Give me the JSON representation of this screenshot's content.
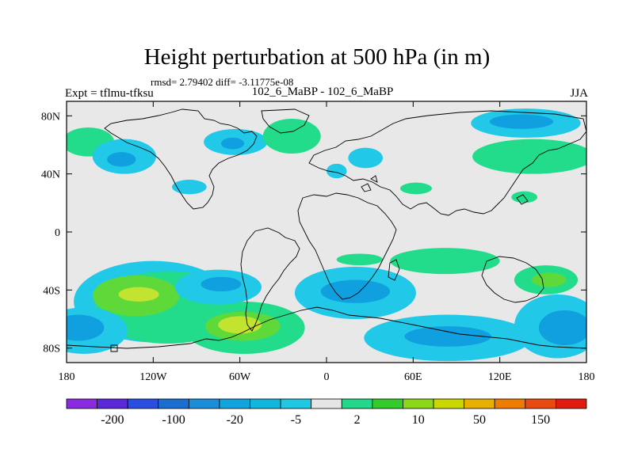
{
  "header": {
    "title": "Height perturbation at 500 hPa (in m)",
    "stats": "rmsd= 2.79402 diff= -3.11775e-08",
    "left_label": "Expt = tflmu-tfksu",
    "center_label": "102_6_MaBP - 102_6_MaBP",
    "right_label": "JJA"
  },
  "map": {
    "lon_range": [
      -180,
      180
    ],
    "lat_range": [
      -90,
      90
    ],
    "x_ticks": [
      {
        "lon": -180,
        "label": "180"
      },
      {
        "lon": -120,
        "label": "120W"
      },
      {
        "lon": -60,
        "label": "60W"
      },
      {
        "lon": 0,
        "label": "0"
      },
      {
        "lon": 60,
        "label": "60E"
      },
      {
        "lon": 120,
        "label": "120E"
      },
      {
        "lon": 180,
        "label": "180"
      }
    ],
    "y_ticks": [
      {
        "lat": 80,
        "label": "80N"
      },
      {
        "lat": 40,
        "label": "40N"
      },
      {
        "lat": 0,
        "label": "0"
      },
      {
        "lat": -40,
        "label": "40S"
      },
      {
        "lat": -80,
        "label": "80S"
      }
    ],
    "fields": [
      {
        "lon": -165,
        "lat": 62,
        "rlon": 18,
        "rlat": 10,
        "level": 2
      },
      {
        "lon": -140,
        "lat": 52,
        "rlon": 22,
        "rlat": 12,
        "level": 1
      },
      {
        "lon": -142,
        "lat": 50,
        "rlon": 10,
        "rlat": 5,
        "level": 0
      },
      {
        "lon": -63,
        "lat": 62,
        "rlon": 22,
        "rlat": 9,
        "level": 1
      },
      {
        "lon": -65,
        "lat": 61,
        "rlon": 8,
        "rlat": 4,
        "level": 0
      },
      {
        "lon": -95,
        "lat": 31,
        "rlon": 12,
        "rlat": 5,
        "level": 1
      },
      {
        "lon": -24,
        "lat": 66,
        "rlon": 20,
        "rlat": 12,
        "level": 2
      },
      {
        "lon": 7,
        "lat": 42,
        "rlon": 7,
        "rlat": 5,
        "level": 1
      },
      {
        "lon": 27,
        "lat": 51,
        "rlon": 12,
        "rlat": 7,
        "level": 1
      },
      {
        "lon": 62,
        "lat": 30,
        "rlon": 11,
        "rlat": 4,
        "level": 2
      },
      {
        "lon": 138,
        "lat": 75,
        "rlon": 38,
        "rlat": 10,
        "level": 1
      },
      {
        "lon": 135,
        "lat": 76,
        "rlon": 22,
        "rlat": 5,
        "level": 0
      },
      {
        "lon": 143,
        "lat": 52,
        "rlon": 42,
        "rlat": 12,
        "level": 2
      },
      {
        "lon": 137,
        "lat": 24,
        "rlon": 9,
        "rlat": 4,
        "level": 2
      },
      {
        "lon": -120,
        "lat": -48,
        "rlon": 55,
        "rlat": 28,
        "level": 1
      },
      {
        "lon": -110,
        "lat": -52,
        "rlon": 50,
        "rlat": 25,
        "level": 2
      },
      {
        "lon": -132,
        "lat": -44,
        "rlon": 30,
        "rlat": 14,
        "level": 3
      },
      {
        "lon": -130,
        "lat": -43,
        "rlon": 14,
        "rlat": 5,
        "level": 4
      },
      {
        "lon": -57,
        "lat": -66,
        "rlon": 42,
        "rlat": 18,
        "level": 2
      },
      {
        "lon": -58,
        "lat": -65,
        "rlon": 26,
        "rlat": 10,
        "level": 3
      },
      {
        "lon": -60,
        "lat": -64,
        "rlon": 15,
        "rlat": 6,
        "level": 4
      },
      {
        "lon": -168,
        "lat": -68,
        "rlon": 30,
        "rlat": 16,
        "level": 1
      },
      {
        "lon": -172,
        "lat": -66,
        "rlon": 18,
        "rlat": 9,
        "level": 0
      },
      {
        "lon": -75,
        "lat": -38,
        "rlon": 30,
        "rlat": 12,
        "level": 1
      },
      {
        "lon": -73,
        "lat": -36,
        "rlon": 14,
        "rlat": 5,
        "level": 0
      },
      {
        "lon": 20,
        "lat": -42,
        "rlon": 42,
        "rlat": 18,
        "level": 1
      },
      {
        "lon": 20,
        "lat": -41,
        "rlon": 24,
        "rlat": 8,
        "level": 0
      },
      {
        "lon": 23,
        "lat": -19,
        "rlon": 16,
        "rlat": 4,
        "level": 2
      },
      {
        "lon": 82,
        "lat": -20,
        "rlon": 38,
        "rlat": 9,
        "level": 2
      },
      {
        "lon": 84,
        "lat": -73,
        "rlon": 58,
        "rlat": 16,
        "level": 1
      },
      {
        "lon": 84,
        "lat": -72,
        "rlon": 30,
        "rlat": 7,
        "level": 0
      },
      {
        "lon": 160,
        "lat": -65,
        "rlon": 30,
        "rlat": 22,
        "level": 1
      },
      {
        "lon": 165,
        "lat": -66,
        "rlon": 18,
        "rlat": 12,
        "level": 0
      },
      {
        "lon": 152,
        "lat": -33,
        "rlon": 22,
        "rlat": 10,
        "level": 2
      },
      {
        "lon": 154,
        "lat": -33,
        "rlon": 12,
        "rlat": 5,
        "level": 3
      }
    ]
  },
  "colorbar": {
    "colors": [
      "#8a2be2",
      "#5b28d8",
      "#2a4fe0",
      "#1a6ed0",
      "#1a8ed8",
      "#11a5df",
      "#10b7dc",
      "#1ec8e2",
      "#e6e6e6",
      "#23d88b",
      "#34cc2a",
      "#8ad818",
      "#c8d800",
      "#e8b000",
      "#ee7c00",
      "#e84a10",
      "#e01c10"
    ],
    "labels": [
      "-200",
      "-100",
      "-20",
      "-5",
      "2",
      "10",
      "50",
      "150"
    ],
    "level_colors": [
      "#10a0df",
      "#22c8e8",
      "#22dc8c",
      "#5fd83a",
      "#c2e430"
    ]
  }
}
